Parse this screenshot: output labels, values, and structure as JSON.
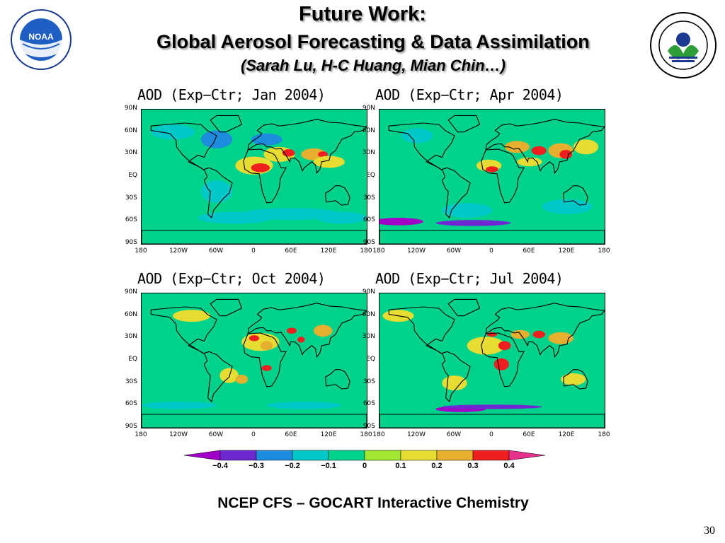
{
  "slide": {
    "title": "Future Work:",
    "subtitle": "Global Aerosol Forecasting & Data Assimilation",
    "authors": "(Sarah Lu, H-C Huang, Mian Chin…)",
    "caption": "NCEP CFS – GOCART Interactive Chemistry",
    "page_number": "30"
  },
  "logos": {
    "noaa": {
      "text": "NOAA",
      "ring_text": "NATIONAL OCEANIC AND ATMOSPHERIC ADMINISTRATION · U.S. DEPARTMENT OF COMMERCE"
    },
    "epa": {
      "ring_text": "UNITED STATES · ENVIRONMENTAL PROTECTION AGENCY"
    }
  },
  "axes": {
    "lat_labels": [
      "90N",
      "60N",
      "30N",
      "EQ",
      "30S",
      "60S",
      "90S"
    ],
    "lon_labels": [
      "180",
      "120W",
      "60W",
      "0",
      "60E",
      "120E",
      "180"
    ]
  },
  "panels": [
    {
      "title": "AOD (Exp−Ctr; Jan 2004)"
    },
    {
      "title": "AOD (Exp−Ctr; Apr 2004)"
    },
    {
      "title": "AOD (Exp−Ctr; Oct 2004)"
    },
    {
      "title": "AOD (Exp−Ctr; Jul 2004)"
    }
  ],
  "colorbar": {
    "labels": [
      "−0.4",
      "−0.3",
      "−0.2",
      "−0.1",
      "0",
      "0.1",
      "0.2",
      "0.3",
      "0.4"
    ],
    "colors": [
      "#a000c8",
      "#6e28d2",
      "#1e8cdc",
      "#00c8c8",
      "#00d28c",
      "#a0e632",
      "#e6dc32",
      "#e6af2d",
      "#f01e1e",
      "#e6328c"
    ]
  }
}
